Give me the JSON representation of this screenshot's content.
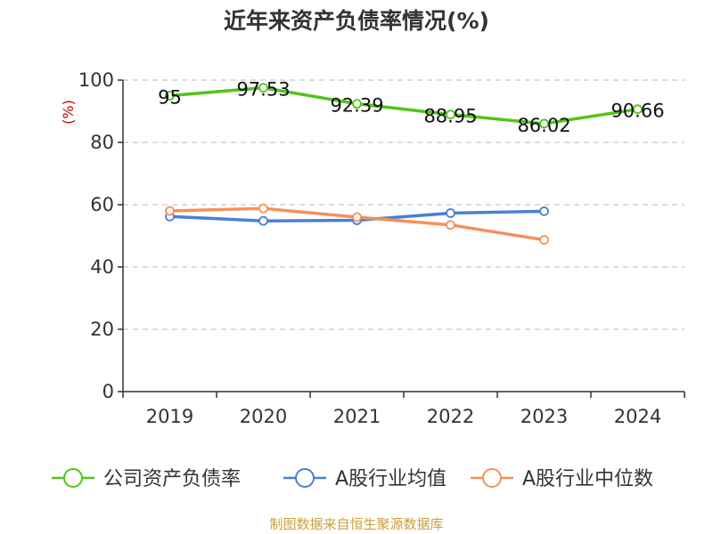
{
  "title": "近年来资产负债率情况(%)",
  "source": "制图数据来自恒生聚源数据库",
  "chart_data": {
    "type": "line",
    "title": "近年来资产负债率情况(%)",
    "ylabel": "(%)",
    "xlabel": "",
    "categories": [
      "2019",
      "2020",
      "2021",
      "2022",
      "2023",
      "2024"
    ],
    "ylim": [
      0,
      100
    ],
    "yticks": [
      0,
      20,
      40,
      60,
      80,
      100
    ],
    "grid": true,
    "legend_position": "bottom",
    "series": [
      {
        "name": "公司资产负债率",
        "color": "#52c41a",
        "values": [
          95,
          97.53,
          92.39,
          88.95,
          86.02,
          90.66
        ],
        "labels": [
          "95",
          "97.53",
          "92.39",
          "88.95",
          "86.02",
          "90.66"
        ]
      },
      {
        "name": "A股行业均值",
        "color": "#4a7fd4",
        "values": [
          56.2,
          54.8,
          55.0,
          57.3,
          57.9,
          null
        ]
      },
      {
        "name": "A股行业中位数",
        "color": "#f5915a",
        "values": [
          58.0,
          58.8,
          56.0,
          53.5,
          48.7,
          null
        ]
      }
    ]
  }
}
